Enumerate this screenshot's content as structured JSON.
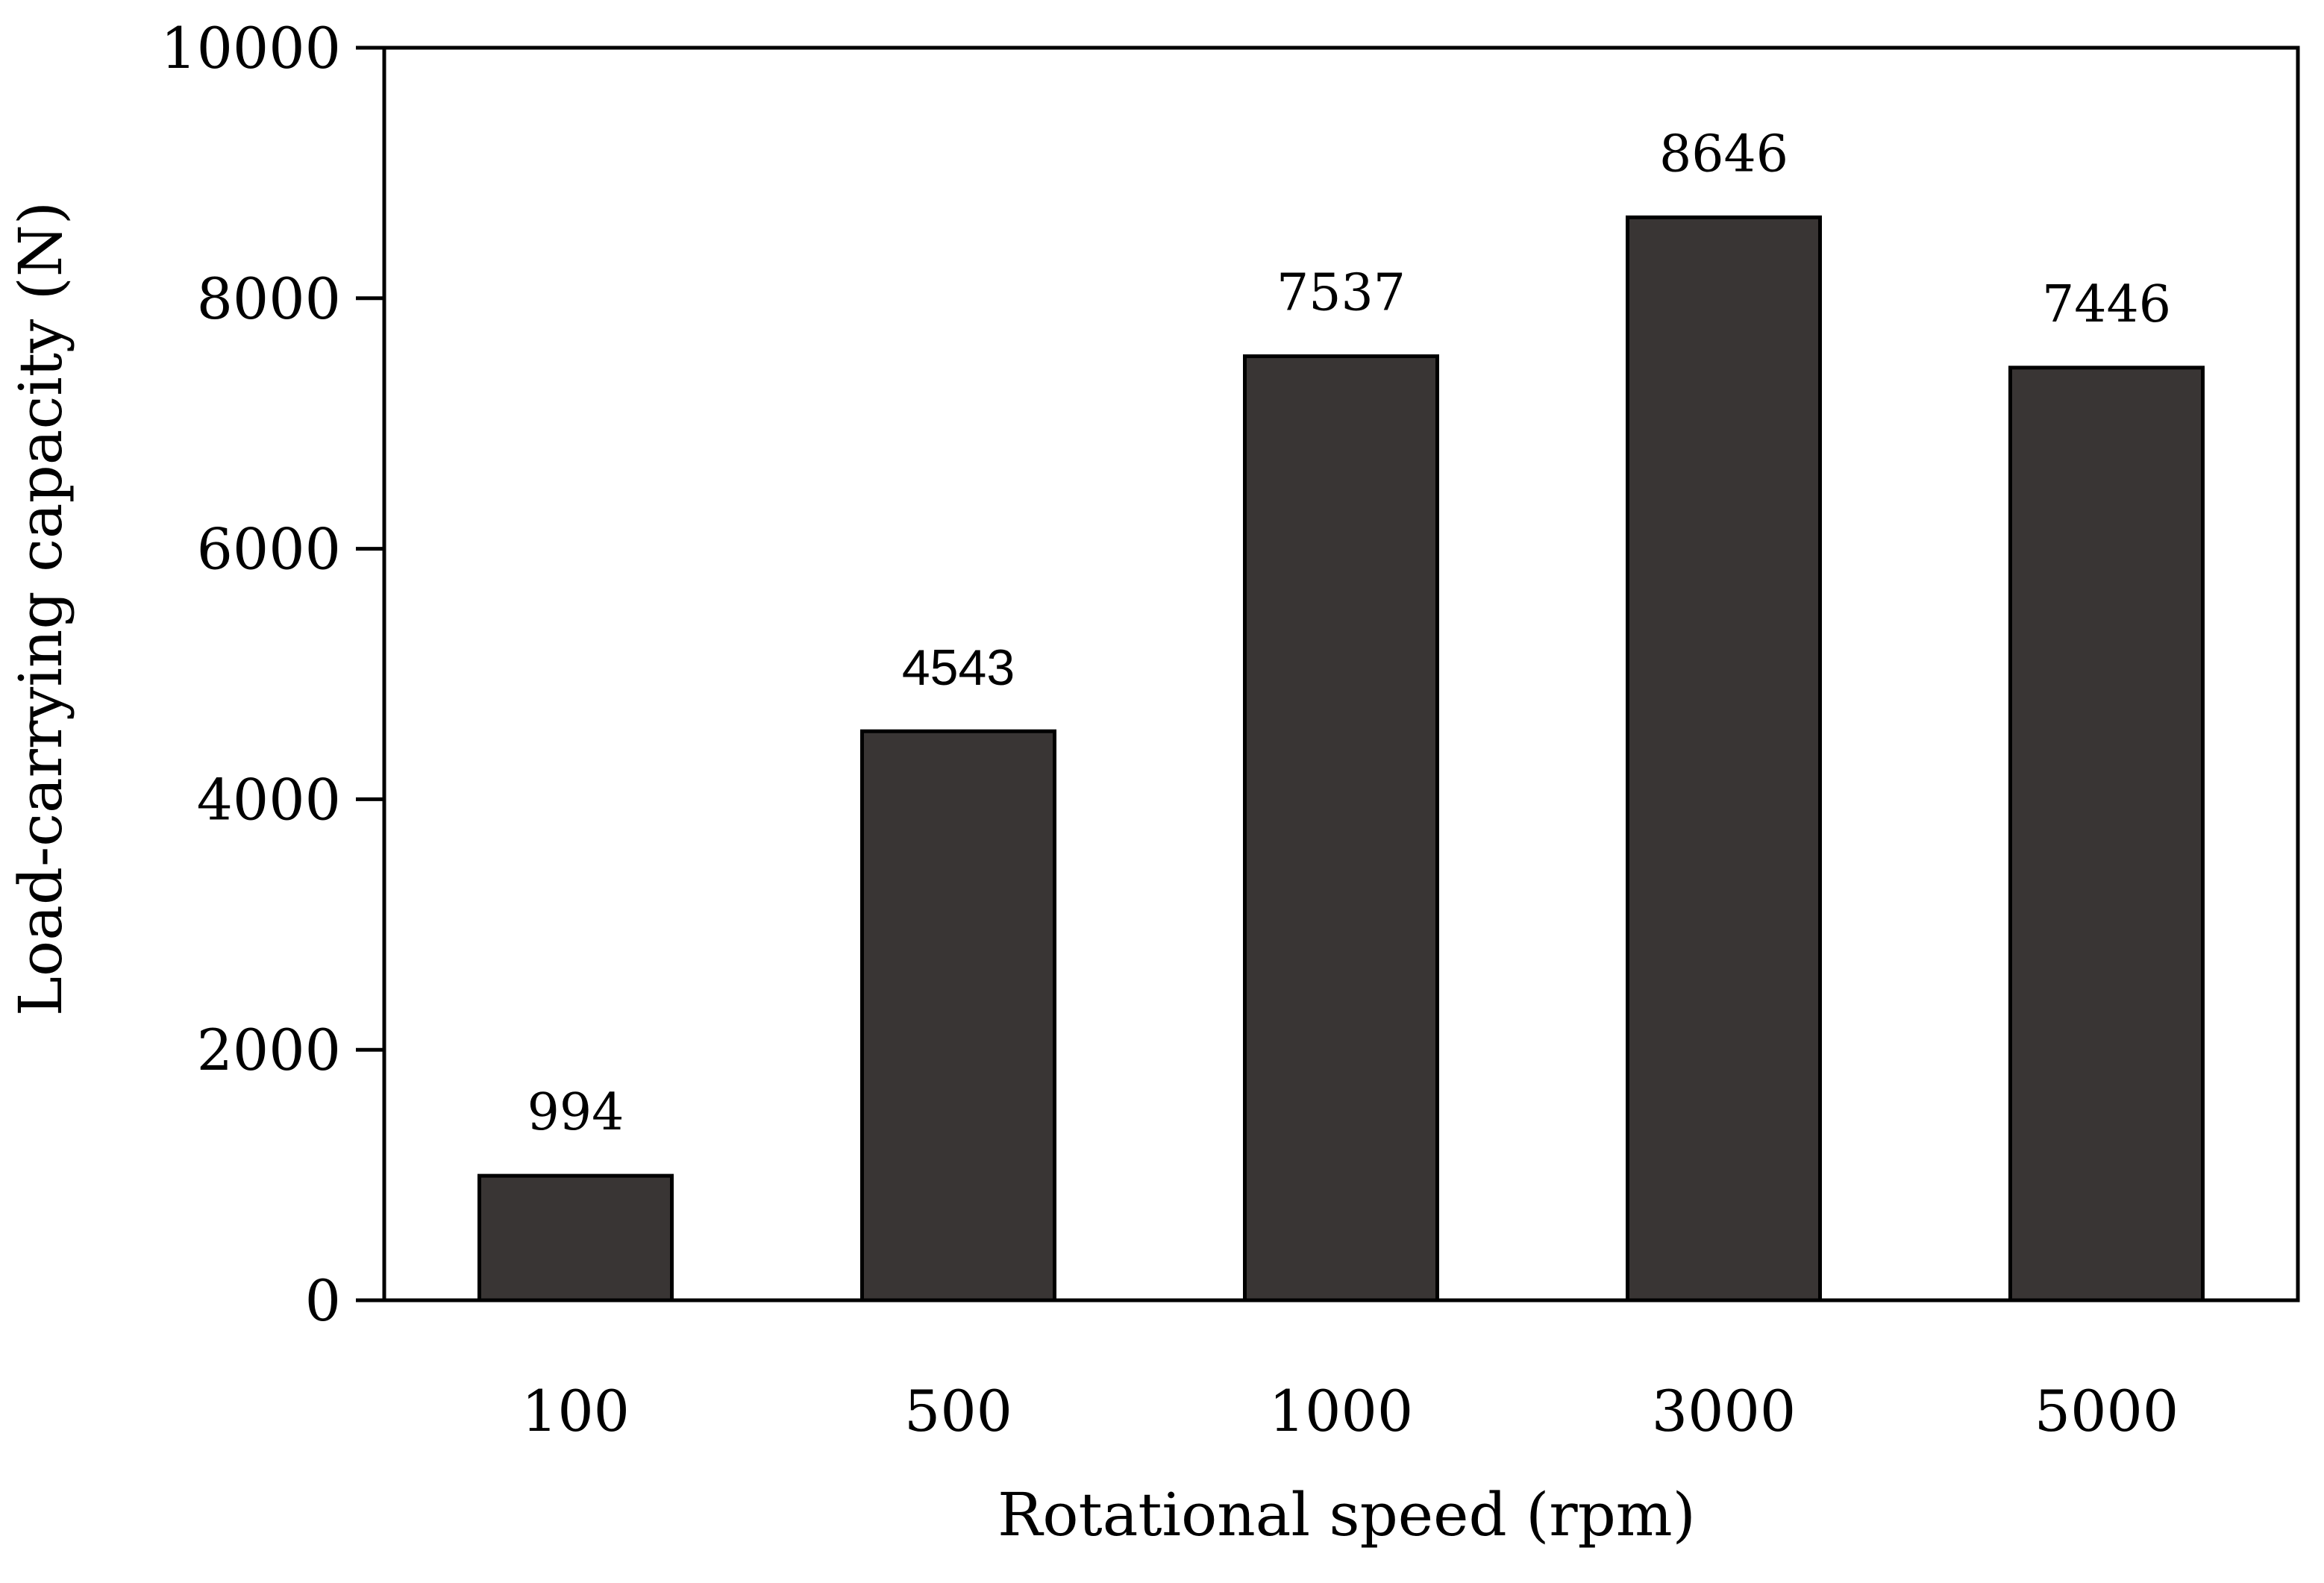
{
  "chart_data": {
    "type": "bar",
    "title": "",
    "xlabel": "Rotational speed (rpm)",
    "ylabel": "Load-carrying capacity (N)",
    "categories": [
      "100",
      "500",
      "1000",
      "3000",
      "5000"
    ],
    "values": [
      994,
      4543,
      7537,
      8646,
      7446
    ],
    "data_labels": [
      "994",
      "4543",
      "7537",
      "8646",
      "7446"
    ],
    "ylim": [
      0,
      10000
    ],
    "yticks": [
      0,
      2000,
      4000,
      6000,
      8000,
      10000
    ],
    "ytick_labels": [
      "0",
      "2000",
      "4000",
      "6000",
      "8000",
      "10000"
    ],
    "grid": false,
    "legend": "none",
    "colors": {
      "bar_fill": "#393534",
      "bar_stroke": "#000000",
      "axis": "#000000"
    }
  }
}
